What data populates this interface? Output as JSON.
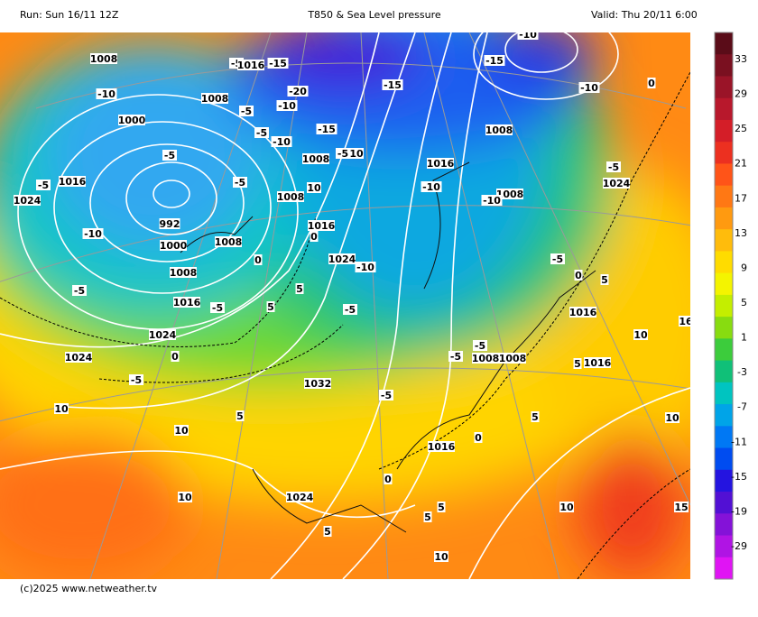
{
  "header": {
    "run": "Run: Sun 16/11 12Z",
    "title": "T850 & Sea Level pressure",
    "valid": "Valid: Thu 20/11 6:00"
  },
  "footer": "(c)2025 www.netweather.tv",
  "colorbar": {
    "ticks": [
      "33",
      "29",
      "25",
      "21",
      "17",
      "13",
      "9",
      "5",
      "1",
      "-3",
      "-7",
      "-11",
      "-15",
      "-19",
      "-29"
    ],
    "colors": [
      "#5a0c18",
      "#7a1020",
      "#9a1428",
      "#b8182c",
      "#d41e28",
      "#ec3020",
      "#ff5418",
      "#ff7814",
      "#ff9a10",
      "#ffbc0c",
      "#ffdc00",
      "#f4f400",
      "#c4ee00",
      "#88dc10",
      "#3ccc3c",
      "#10c078",
      "#00c4c0",
      "#00a4e8",
      "#0078f4",
      "#004cf0",
      "#2414e0",
      "#5210d4",
      "#8412d8",
      "#b014e4",
      "#e014f4"
    ]
  },
  "map": {
    "labels": [
      "1008",
      "-5",
      "1016",
      "-15",
      "-10",
      "-20",
      "-10",
      "1008",
      "-5",
      "1000",
      "-5",
      "-15",
      "-10",
      "-5",
      "1008",
      "-5",
      "10",
      "-5",
      "1016",
      "1024",
      "-5",
      "1008",
      "10",
      "992",
      "-10",
      "1016",
      "0",
      "1008",
      "1000",
      "0",
      "1024",
      "-10",
      "1008",
      "5",
      "-5",
      "1016",
      "-5",
      "5",
      "1024",
      "1024",
      "0",
      "-5",
      "-5",
      "1032",
      "-5",
      "10",
      "5",
      "10",
      "10",
      "1024",
      "5",
      "5",
      "10",
      "5",
      "1016",
      "0",
      "0",
      "5",
      "10",
      "15",
      "10",
      "10",
      "1016",
      "5",
      "1008",
      "1008",
      "-5",
      "-5",
      "1016",
      "5",
      "0",
      "-5",
      "16",
      "1024",
      "-5",
      "1008",
      "-10",
      "-10",
      "1016",
      "1008",
      "-10",
      "-15",
      "-15",
      "-10",
      "0"
    ]
  }
}
